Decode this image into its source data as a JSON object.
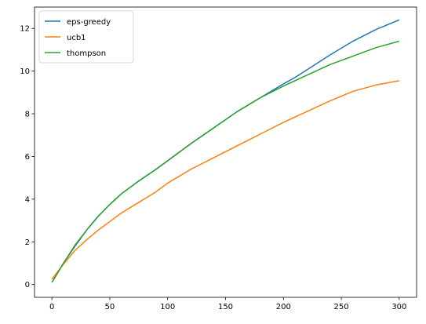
{
  "chart_data": {
    "type": "line",
    "title": "",
    "xlabel": "",
    "ylabel": "",
    "xlim": [
      -15,
      315
    ],
    "ylim": [
      -0.6,
      13.0
    ],
    "xticks": [
      0,
      50,
      100,
      150,
      200,
      250,
      300
    ],
    "yticks": [
      0,
      2,
      4,
      6,
      8,
      10,
      12
    ],
    "grid": false,
    "legend_position": "top-left",
    "series": [
      {
        "name": "eps-greedy",
        "color": "#1f77b4",
        "x": [
          0,
          10,
          20,
          30,
          40,
          50,
          60,
          75,
          90,
          100,
          120,
          140,
          160,
          180,
          200,
          210,
          220,
          240,
          260,
          280,
          300
        ],
        "y": [
          0.1,
          1.0,
          1.8,
          2.55,
          3.2,
          3.75,
          4.25,
          4.85,
          5.4,
          5.8,
          6.6,
          7.35,
          8.1,
          8.75,
          9.4,
          9.7,
          10.05,
          10.75,
          11.4,
          11.95,
          12.4
        ]
      },
      {
        "name": "ucb1",
        "color": "#ff7f0e",
        "x": [
          0,
          10,
          20,
          30,
          40,
          50,
          60,
          75,
          90,
          100,
          120,
          140,
          160,
          180,
          200,
          220,
          240,
          260,
          280,
          300
        ],
        "y": [
          0.25,
          0.95,
          1.6,
          2.1,
          2.55,
          2.95,
          3.35,
          3.85,
          4.35,
          4.75,
          5.4,
          5.95,
          6.5,
          7.05,
          7.6,
          8.1,
          8.6,
          9.05,
          9.35,
          9.55
        ]
      },
      {
        "name": "thompson",
        "color": "#2ca02c",
        "x": [
          0,
          10,
          20,
          30,
          40,
          50,
          60,
          75,
          90,
          100,
          120,
          140,
          160,
          180,
          200,
          220,
          240,
          260,
          280,
          300
        ],
        "y": [
          0.1,
          1.0,
          1.85,
          2.55,
          3.2,
          3.75,
          4.25,
          4.85,
          5.4,
          5.8,
          6.6,
          7.35,
          8.1,
          8.75,
          9.3,
          9.8,
          10.3,
          10.7,
          11.1,
          11.4
        ]
      }
    ]
  }
}
